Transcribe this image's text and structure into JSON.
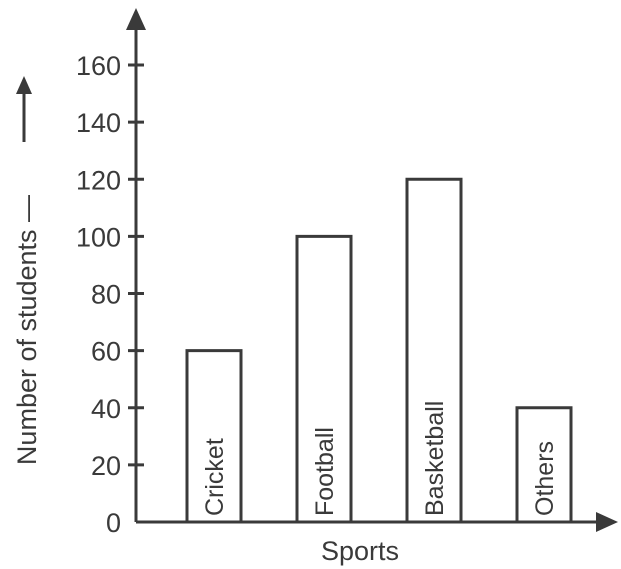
{
  "chart_data": {
    "type": "bar",
    "categories": [
      "Cricket",
      "Football",
      "Basketball",
      "Others"
    ],
    "values": [
      60,
      100,
      120,
      40
    ],
    "title": "",
    "xlabel": "Sports",
    "ylabel": "Number of students —",
    "ylim": [
      0,
      160
    ],
    "yticks": [
      0,
      20,
      40,
      60,
      80,
      100,
      120,
      140,
      160
    ],
    "grid": false,
    "category_labels_inside_bars": true
  }
}
